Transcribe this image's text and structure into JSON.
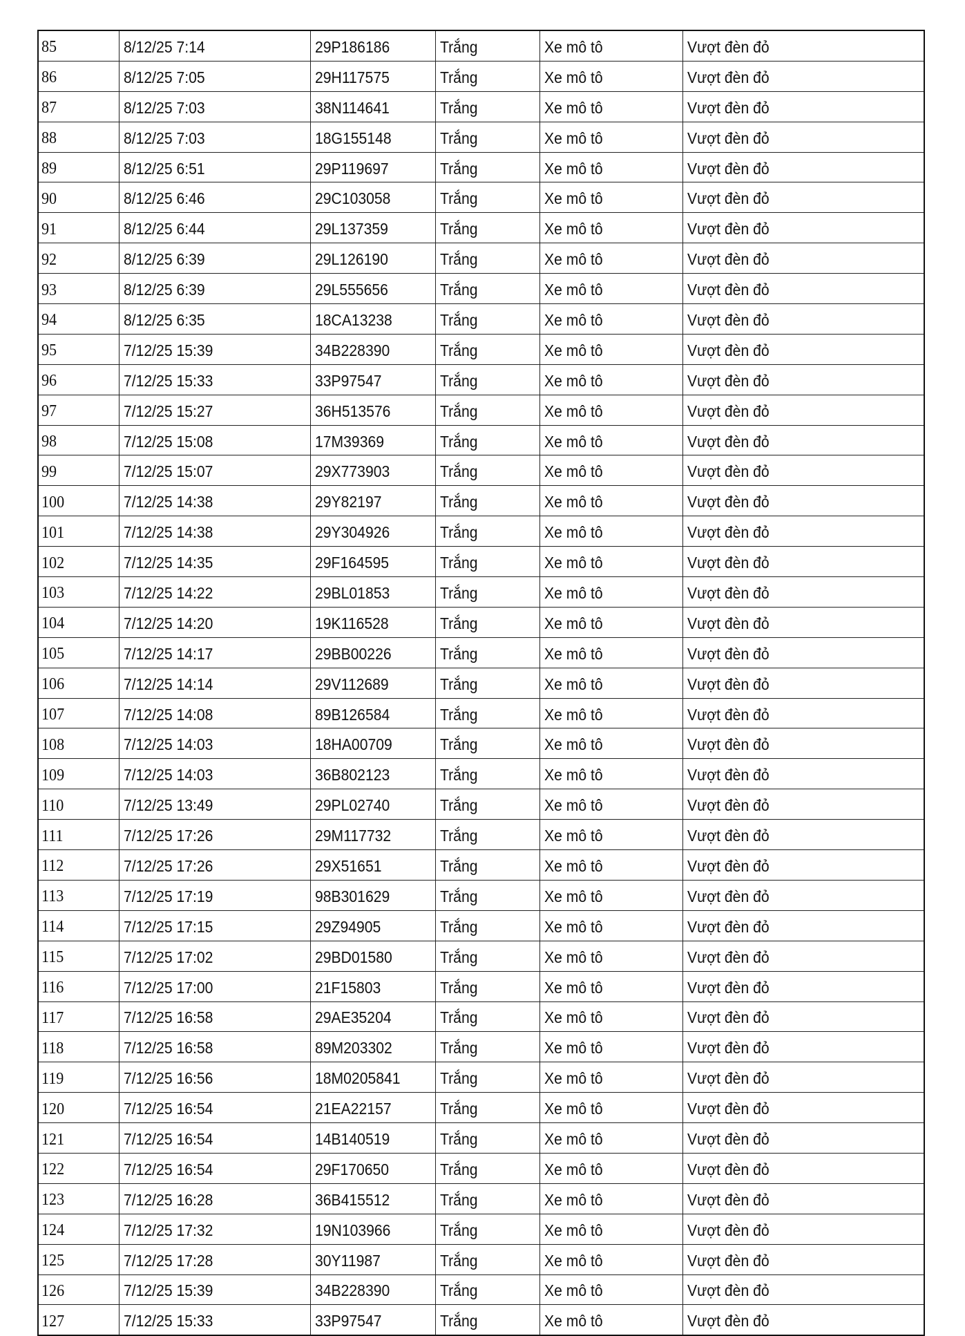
{
  "table": {
    "rows": [
      [
        "85",
        "8/12/25 7:14",
        "29P186186",
        "Trắng",
        "Xe mô tô",
        "Vượt đèn đỏ"
      ],
      [
        "86",
        "8/12/25 7:05",
        "29H117575",
        "Trắng",
        "Xe mô tô",
        "Vượt đèn đỏ"
      ],
      [
        "87",
        "8/12/25 7:03",
        "38N114641",
        "Trắng",
        "Xe mô tô",
        "Vượt đèn đỏ"
      ],
      [
        "88",
        "8/12/25 7:03",
        "18G155148",
        "Trắng",
        "Xe mô tô",
        "Vượt đèn đỏ"
      ],
      [
        "89",
        "8/12/25 6:51",
        "29P119697",
        "Trắng",
        "Xe mô tô",
        "Vượt đèn đỏ"
      ],
      [
        "90",
        "8/12/25 6:46",
        "29C103058",
        "Trắng",
        "Xe mô tô",
        "Vượt đèn đỏ"
      ],
      [
        "91",
        "8/12/25 6:44",
        "29L137359",
        "Trắng",
        "Xe mô tô",
        "Vượt đèn đỏ"
      ],
      [
        "92",
        "8/12/25 6:39",
        "29L126190",
        "Trắng",
        "Xe mô tô",
        "Vượt đèn đỏ"
      ],
      [
        "93",
        "8/12/25 6:39",
        "29L555656",
        "Trắng",
        "Xe mô tô",
        "Vượt đèn đỏ"
      ],
      [
        "94",
        "8/12/25 6:35",
        "18CA13238",
        "Trắng",
        "Xe mô tô",
        "Vượt đèn đỏ"
      ],
      [
        "95",
        "7/12/25 15:39",
        "34B228390",
        "Trắng",
        "Xe mô tô",
        "Vượt đèn đỏ"
      ],
      [
        "96",
        "7/12/25 15:33",
        "33P97547",
        "Trắng",
        "Xe mô tô",
        "Vượt đèn đỏ"
      ],
      [
        "97",
        "7/12/25 15:27",
        "36H513576",
        "Trắng",
        "Xe mô tô",
        "Vượt đèn đỏ"
      ],
      [
        "98",
        "7/12/25 15:08",
        "17M39369",
        "Trắng",
        "Xe mô tô",
        "Vượt đèn đỏ"
      ],
      [
        "99",
        "7/12/25 15:07",
        "29X773903",
        "Trắng",
        "Xe mô tô",
        "Vượt đèn đỏ"
      ],
      [
        "100",
        "7/12/25 14:38",
        "29Y82197",
        "Trắng",
        "Xe mô tô",
        "Vượt đèn đỏ"
      ],
      [
        "101",
        "7/12/25 14:38",
        "29Y304926",
        "Trắng",
        "Xe mô tô",
        "Vượt đèn đỏ"
      ],
      [
        "102",
        "7/12/25 14:35",
        "29F164595",
        "Trắng",
        "Xe mô tô",
        "Vượt đèn đỏ"
      ],
      [
        "103",
        "7/12/25 14:22",
        "29BL01853",
        "Trắng",
        "Xe mô tô",
        "Vượt đèn đỏ"
      ],
      [
        "104",
        "7/12/25 14:20",
        "19K116528",
        "Trắng",
        "Xe mô tô",
        "Vượt đèn đỏ"
      ],
      [
        "105",
        "7/12/25 14:17",
        "29BB00226",
        "Trắng",
        "Xe mô tô",
        "Vượt đèn đỏ"
      ],
      [
        "106",
        "7/12/25 14:14",
        "29V112689",
        "Trắng",
        "Xe mô tô",
        "Vượt đèn đỏ"
      ],
      [
        "107",
        "7/12/25 14:08",
        "89B126584",
        "Trắng",
        "Xe mô tô",
        "Vượt đèn đỏ"
      ],
      [
        "108",
        "7/12/25 14:03",
        "18HA00709",
        "Trắng",
        "Xe mô tô",
        "Vượt đèn đỏ"
      ],
      [
        "109",
        "7/12/25 14:03",
        "36B802123",
        "Trắng",
        "Xe mô tô",
        "Vượt đèn đỏ"
      ],
      [
        "110",
        "7/12/25 13:49",
        "29PL02740",
        "Trắng",
        "Xe mô tô",
        "Vượt đèn đỏ"
      ],
      [
        "111",
        "7/12/25 17:26",
        "29M117732",
        "Trắng",
        "Xe mô tô",
        "Vượt đèn đỏ"
      ],
      [
        "112",
        "7/12/25 17:26",
        "29X51651",
        "Trắng",
        "Xe mô tô",
        "Vượt đèn đỏ"
      ],
      [
        "113",
        "7/12/25 17:19",
        "98B301629",
        "Trắng",
        "Xe mô tô",
        "Vượt đèn đỏ"
      ],
      [
        "114",
        "7/12/25 17:15",
        "29Z94905",
        "Trắng",
        "Xe mô tô",
        "Vượt đèn đỏ"
      ],
      [
        "115",
        "7/12/25 17:02",
        "29BD01580",
        "Trắng",
        "Xe mô tô",
        "Vượt đèn đỏ"
      ],
      [
        "116",
        "7/12/25 17:00",
        "21F15803",
        "Trắng",
        "Xe mô tô",
        "Vượt đèn đỏ"
      ],
      [
        "117",
        "7/12/25 16:58",
        "29AE35204",
        "Trắng",
        "Xe mô tô",
        "Vượt đèn đỏ"
      ],
      [
        "118",
        "7/12/25 16:58",
        "89M203302",
        "Trắng",
        "Xe mô tô",
        "Vượt đèn đỏ"
      ],
      [
        "119",
        "7/12/25 16:56",
        "18M0205841",
        "Trắng",
        "Xe mô tô",
        "Vượt đèn đỏ"
      ],
      [
        "120",
        "7/12/25 16:54",
        "21EA22157",
        "Trắng",
        "Xe mô tô",
        "Vượt đèn đỏ"
      ],
      [
        "121",
        "7/12/25 16:54",
        "14B140519",
        "Trắng",
        "Xe mô tô",
        "Vượt đèn đỏ"
      ],
      [
        "122",
        "7/12/25 16:54",
        "29F170650",
        "Trắng",
        "Xe mô tô",
        "Vượt đèn đỏ"
      ],
      [
        "123",
        "7/12/25 16:28",
        "36B415512",
        "Trắng",
        "Xe mô tô",
        "Vượt đèn đỏ"
      ],
      [
        "124",
        "7/12/25 17:32",
        "19N103966",
        "Trắng",
        "Xe mô tô",
        "Vượt đèn đỏ"
      ],
      [
        "125",
        "7/12/25 17:28",
        "30Y11987",
        "Trắng",
        "Xe mô tô",
        "Vượt đèn đỏ"
      ],
      [
        "126",
        "7/12/25 15:39",
        "34B228390",
        "Trắng",
        "Xe mô tô",
        "Vượt đèn đỏ"
      ],
      [
        "127",
        "7/12/25 15:33",
        "33P97547",
        "Trắng",
        "Xe mô tô",
        "Vượt đèn đỏ"
      ]
    ]
  }
}
